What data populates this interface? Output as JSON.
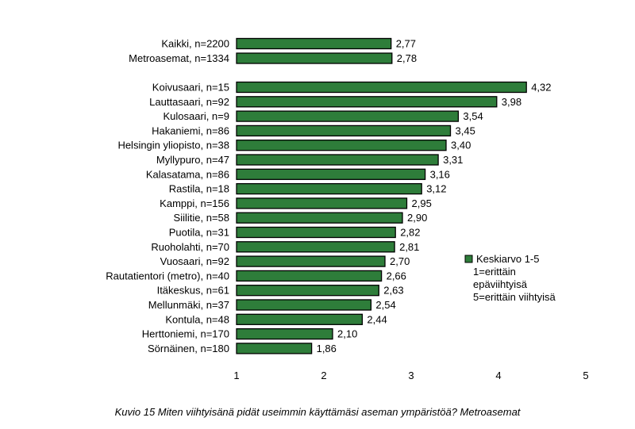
{
  "caption": "Kuvio 15 Miten viihtyisänä pidät useimmin käyttämäsi aseman ympäristöä? Metroasemat",
  "chart_data": {
    "type": "bar",
    "orientation": "horizontal",
    "categories": [
      "Kaikki, n=2200",
      "Metroasemat, n=1334",
      "Koivusaari, n=15",
      "Lauttasaari, n=92",
      "Kulosaari, n=9",
      "Hakaniemi, n=86",
      "Helsingin yliopisto, n=38",
      "Myllypuro, n=47",
      "Kalasatama, n=86",
      "Rastila, n=18",
      "Kamppi, n=156",
      "Siilitie, n=58",
      "Puotila, n=31",
      "Ruoholahti, n=70",
      "Vuosaari, n=92",
      "Rautatientori (metro), n=40",
      "Itäkeskus, n=61",
      "Mellunmäki, n=37",
      "Kontula, n=48",
      "Herttoniemi, n=170",
      "Sörnäinen, n=180"
    ],
    "values": [
      2.77,
      2.78,
      4.32,
      3.98,
      3.54,
      3.45,
      3.4,
      3.31,
      3.16,
      3.12,
      2.95,
      2.9,
      2.82,
      2.81,
      2.7,
      2.66,
      2.63,
      2.54,
      2.44,
      2.1,
      1.86
    ],
    "value_labels": [
      "2,77",
      "2,78",
      "4,32",
      "3,98",
      "3,54",
      "3,45",
      "3,40",
      "3,31",
      "3,16",
      "3,12",
      "2,95",
      "2,90",
      "2,82",
      "2,81",
      "2,70",
      "2,66",
      "2,63",
      "2,54",
      "2,44",
      "2,10",
      "1,86"
    ],
    "xlim": [
      1,
      5
    ],
    "xticks": [
      "1",
      "2",
      "3",
      "4",
      "5"
    ],
    "legend": {
      "position": "right",
      "lines": [
        "Keskiarvo 1-5",
        "1=erittäin",
        "epäviihtyisä",
        "5=erittäin viihtyisä"
      ]
    },
    "grid": false,
    "colors": {
      "bar_fill": "#2e7d3a",
      "bar_edge": "#000000"
    }
  }
}
